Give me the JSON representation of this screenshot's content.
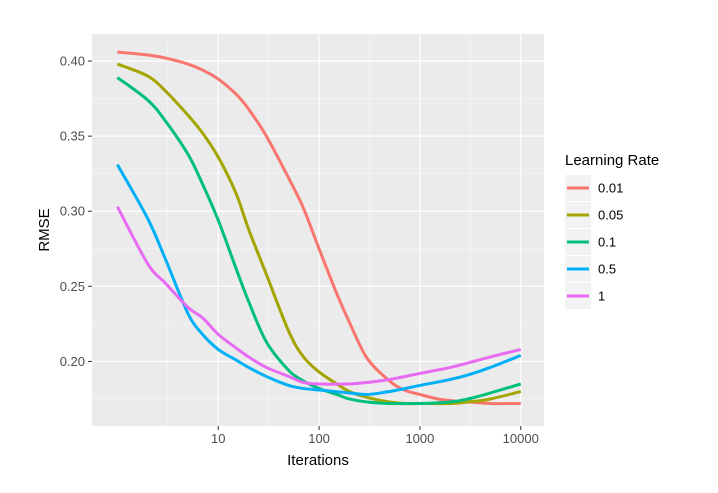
{
  "chart_data": {
    "type": "line",
    "title": "",
    "xlabel": "Iterations",
    "ylabel": "RMSE",
    "x_scale": "log10",
    "xlim": [
      0.56,
      17000
    ],
    "ylim": [
      0.157,
      0.418
    ],
    "x_ticks": [
      {
        "value": 10,
        "label": "10"
      },
      {
        "value": 100,
        "label": "100"
      },
      {
        "value": 1000,
        "label": "1000"
      },
      {
        "value": 10000,
        "label": "10000"
      }
    ],
    "y_ticks": [
      {
        "value": 0.2,
        "label": "0.20"
      },
      {
        "value": 0.25,
        "label": "0.25"
      },
      {
        "value": 0.3,
        "label": "0.30"
      },
      {
        "value": 0.35,
        "label": "0.35"
      },
      {
        "value": 0.4,
        "label": "0.40"
      }
    ],
    "grid": true,
    "legend": {
      "title": "Learning Rate",
      "position": "right"
    },
    "series": [
      {
        "name": "0.01",
        "color": "#F8766D",
        "points": [
          [
            1,
            0.406
          ],
          [
            2,
            0.404
          ],
          [
            3,
            0.402
          ],
          [
            5,
            0.398
          ],
          [
            7,
            0.394
          ],
          [
            10,
            0.388
          ],
          [
            15,
            0.378
          ],
          [
            20,
            0.368
          ],
          [
            30,
            0.35
          ],
          [
            50,
            0.322
          ],
          [
            70,
            0.302
          ],
          [
            100,
            0.275
          ],
          [
            150,
            0.245
          ],
          [
            200,
            0.226
          ],
          [
            300,
            0.202
          ],
          [
            500,
            0.187
          ],
          [
            700,
            0.181
          ],
          [
            1000,
            0.178
          ],
          [
            1500,
            0.175
          ],
          [
            2000,
            0.174
          ],
          [
            3000,
            0.173
          ],
          [
            5000,
            0.172
          ],
          [
            10000,
            0.172
          ]
        ]
      },
      {
        "name": "0.05",
        "color": "#A3A500",
        "points": [
          [
            1,
            0.398
          ],
          [
            2,
            0.39
          ],
          [
            3,
            0.38
          ],
          [
            5,
            0.364
          ],
          [
            7,
            0.352
          ],
          [
            10,
            0.336
          ],
          [
            15,
            0.312
          ],
          [
            20,
            0.288
          ],
          [
            30,
            0.258
          ],
          [
            50,
            0.22
          ],
          [
            70,
            0.203
          ],
          [
            100,
            0.193
          ],
          [
            150,
            0.185
          ],
          [
            200,
            0.18
          ],
          [
            300,
            0.176
          ],
          [
            500,
            0.173
          ],
          [
            700,
            0.172
          ],
          [
            1000,
            0.172
          ],
          [
            2000,
            0.172
          ],
          [
            3000,
            0.173
          ],
          [
            5000,
            0.175
          ],
          [
            10000,
            0.18
          ]
        ]
      },
      {
        "name": "0.1",
        "color": "#00BF7D",
        "points": [
          [
            1,
            0.389
          ],
          [
            2,
            0.374
          ],
          [
            3,
            0.36
          ],
          [
            5,
            0.338
          ],
          [
            7,
            0.318
          ],
          [
            10,
            0.294
          ],
          [
            15,
            0.262
          ],
          [
            20,
            0.24
          ],
          [
            30,
            0.213
          ],
          [
            50,
            0.194
          ],
          [
            70,
            0.187
          ],
          [
            100,
            0.182
          ],
          [
            150,
            0.178
          ],
          [
            200,
            0.175
          ],
          [
            300,
            0.173
          ],
          [
            500,
            0.172
          ],
          [
            1000,
            0.172
          ],
          [
            2000,
            0.173
          ],
          [
            3000,
            0.175
          ],
          [
            5000,
            0.179
          ],
          [
            10000,
            0.185
          ]
        ]
      },
      {
        "name": "0.5",
        "color": "#00B0F6",
        "points": [
          [
            1,
            0.331
          ],
          [
            2,
            0.295
          ],
          [
            3,
            0.268
          ],
          [
            5,
            0.232
          ],
          [
            7,
            0.218
          ],
          [
            10,
            0.208
          ],
          [
            15,
            0.201
          ],
          [
            20,
            0.196
          ],
          [
            30,
            0.19
          ],
          [
            50,
            0.184
          ],
          [
            70,
            0.182
          ],
          [
            100,
            0.181
          ],
          [
            200,
            0.179
          ],
          [
            300,
            0.178
          ],
          [
            500,
            0.18
          ],
          [
            1000,
            0.184
          ],
          [
            2000,
            0.188
          ],
          [
            3000,
            0.191
          ],
          [
            5000,
            0.196
          ],
          [
            10000,
            0.204
          ]
        ]
      },
      {
        "name": "1",
        "color": "#E76BF3",
        "points": [
          [
            1,
            0.303
          ],
          [
            2,
            0.265
          ],
          [
            3,
            0.252
          ],
          [
            5,
            0.236
          ],
          [
            7,
            0.229
          ],
          [
            10,
            0.218
          ],
          [
            15,
            0.209
          ],
          [
            20,
            0.203
          ],
          [
            30,
            0.196
          ],
          [
            50,
            0.19
          ],
          [
            70,
            0.186
          ],
          [
            100,
            0.185
          ],
          [
            200,
            0.185
          ],
          [
            300,
            0.186
          ],
          [
            500,
            0.188
          ],
          [
            1000,
            0.192
          ],
          [
            2000,
            0.196
          ],
          [
            3000,
            0.199
          ],
          [
            5000,
            0.203
          ],
          [
            10000,
            0.208
          ]
        ]
      }
    ]
  }
}
